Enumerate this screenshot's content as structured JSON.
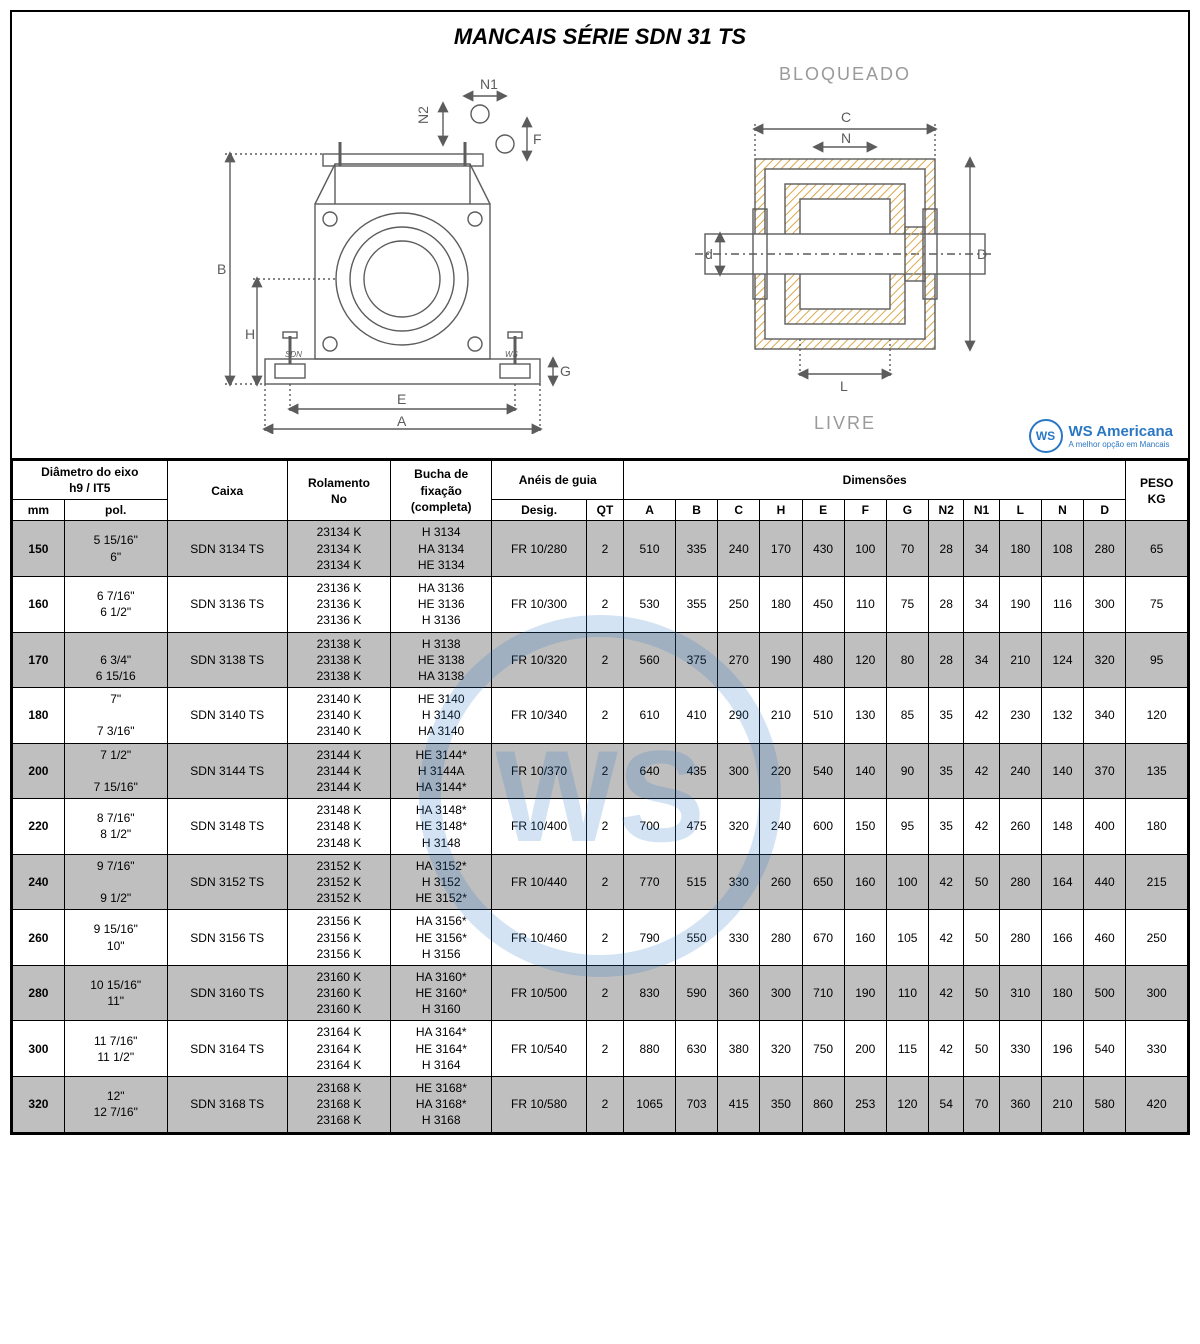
{
  "title": "MANCAIS SÉRIE  SDN 31 TS",
  "diagram_labels": {
    "top": "BLOQUEADO",
    "bottom": "LIVRE"
  },
  "dim_letters": {
    "A": "A",
    "B": "B",
    "C": "C",
    "D": "D",
    "E": "E",
    "F": "F",
    "G": "G",
    "H": "H",
    "L": "L",
    "N": "N",
    "N1": "N1",
    "N2": "N2",
    "d": "d"
  },
  "drawing_marks": {
    "sdn": "SDN",
    "ws": "WS"
  },
  "logo": {
    "icon": "WS",
    "line1": "WS Americana",
    "line2": "A melhor opção em Mancais"
  },
  "headers": {
    "diam": "Diâmetro do eixo\nh9 / IT5",
    "mm": "mm",
    "pol": "pol.",
    "caixa": "Caixa",
    "rolamento": "Rolamento\nNo",
    "bucha": "Bucha de\nfixação\n(completa)",
    "aneis": "Anéis de guia",
    "desig": "Desig.",
    "qt": "QT",
    "dim": "Dimensões",
    "A": "A",
    "B": "B",
    "C": "C",
    "H": "H",
    "E": "E",
    "F": "F",
    "G": "G",
    "N2": "N2",
    "N1": "N1",
    "L": "L",
    "N": "N",
    "D": "D",
    "peso": "PESO\nKG"
  },
  "rows": [
    {
      "shade": true,
      "mm": "150",
      "pol": "5 15/16\"\n6\"",
      "caixa": "SDN 3134 TS",
      "rol": "23134 K\n23134 K\n23134 K",
      "bucha": "H 3134\nHA 3134\nHE 3134",
      "desig": "FR 10/280",
      "qt": "2",
      "A": "510",
      "B": "335",
      "C": "240",
      "H": "170",
      "E": "430",
      "F": "100",
      "G": "70",
      "N2": "28",
      "N1": "34",
      "L": "180",
      "N": "108",
      "D": "280",
      "peso": "65"
    },
    {
      "shade": false,
      "mm": "160",
      "pol": "6 7/16\"\n6 1/2\"",
      "caixa": "SDN 3136 TS",
      "rol": "23136 K\n23136 K\n23136 K",
      "bucha": "HA 3136\nHE 3136\nH 3136",
      "desig": "FR 10/300",
      "qt": "2",
      "A": "530",
      "B": "355",
      "C": "250",
      "H": "180",
      "E": "450",
      "F": "110",
      "G": "75",
      "N2": "28",
      "N1": "34",
      "L": "190",
      "N": "116",
      "D": "300",
      "peso": "75"
    },
    {
      "shade": true,
      "mm": "170",
      "pol": "\n6 3/4\"\n6 15/16",
      "caixa": "SDN 3138 TS",
      "rol": "23138 K\n23138 K\n23138 K",
      "bucha": "H 3138\nHE 3138\nHA 3138",
      "desig": "FR 10/320",
      "qt": "2",
      "A": "560",
      "B": "375",
      "C": "270",
      "H": "190",
      "E": "480",
      "F": "120",
      "G": "80",
      "N2": "28",
      "N1": "34",
      "L": "210",
      "N": "124",
      "D": "320",
      "peso": "95"
    },
    {
      "shade": false,
      "mm": "180",
      "pol": "7\"\n\n7 3/16\"",
      "caixa": "SDN 3140 TS",
      "rol": "23140 K\n23140 K\n23140 K",
      "bucha": "HE 3140\nH 3140\nHA 3140",
      "desig": "FR 10/340",
      "qt": "2",
      "A": "610",
      "B": "410",
      "C": "290",
      "H": "210",
      "E": "510",
      "F": "130",
      "G": "85",
      "N2": "35",
      "N1": "42",
      "L": "230",
      "N": "132",
      "D": "340",
      "peso": "120"
    },
    {
      "shade": true,
      "mm": "200",
      "pol": "7 1/2\"\n\n7 15/16\"",
      "caixa": "SDN 3144 TS",
      "rol": "23144 K\n23144 K\n23144 K",
      "bucha": "HE 3144*\nH 3144A\nHA 3144*",
      "desig": "FR 10/370",
      "qt": "2",
      "A": "640",
      "B": "435",
      "C": "300",
      "H": "220",
      "E": "540",
      "F": "140",
      "G": "90",
      "N2": "35",
      "N1": "42",
      "L": "240",
      "N": "140",
      "D": "370",
      "peso": "135"
    },
    {
      "shade": false,
      "mm": "220",
      "pol": "8 7/16\"\n8 1/2\"",
      "caixa": "SDN 3148 TS",
      "rol": "23148 K\n23148 K\n23148 K",
      "bucha": "HA 3148*\nHE 3148*\nH 3148",
      "desig": "FR 10/400",
      "qt": "2",
      "A": "700",
      "B": "475",
      "C": "320",
      "H": "240",
      "E": "600",
      "F": "150",
      "G": "95",
      "N2": "35",
      "N1": "42",
      "L": "260",
      "N": "148",
      "D": "400",
      "peso": "180"
    },
    {
      "shade": true,
      "mm": "240",
      "pol": "9 7/16\"\n\n9 1/2\"",
      "caixa": "SDN 3152 TS",
      "rol": "23152 K\n23152 K\n23152 K",
      "bucha": "HA 3152*\nH 3152\nHE 3152*",
      "desig": "FR 10/440",
      "qt": "2",
      "A": "770",
      "B": "515",
      "C": "330",
      "H": "260",
      "E": "650",
      "F": "160",
      "G": "100",
      "N2": "42",
      "N1": "50",
      "L": "280",
      "N": "164",
      "D": "440",
      "peso": "215"
    },
    {
      "shade": false,
      "mm": "260",
      "pol": "9 15/16\"\n10\"",
      "caixa": "SDN 3156 TS",
      "rol": "23156 K\n23156 K\n23156 K",
      "bucha": "HA 3156*\nHE 3156*\nH 3156",
      "desig": "FR 10/460",
      "qt": "2",
      "A": "790",
      "B": "550",
      "C": "330",
      "H": "280",
      "E": "670",
      "F": "160",
      "G": "105",
      "N2": "42",
      "N1": "50",
      "L": "280",
      "N": "166",
      "D": "460",
      "peso": "250"
    },
    {
      "shade": true,
      "mm": "280",
      "pol": "10 15/16\"\n11\"",
      "caixa": "SDN 3160 TS",
      "rol": "23160 K\n23160 K\n23160 K",
      "bucha": "HA 3160*\nHE 3160*\nH 3160",
      "desig": "FR 10/500",
      "qt": "2",
      "A": "830",
      "B": "590",
      "C": "360",
      "H": "300",
      "E": "710",
      "F": "190",
      "G": "110",
      "N2": "42",
      "N1": "50",
      "L": "310",
      "N": "180",
      "D": "500",
      "peso": "300"
    },
    {
      "shade": false,
      "mm": "300",
      "pol": "11 7/16\"\n11 1/2\"",
      "caixa": "SDN 3164 TS",
      "rol": "23164 K\n23164 K\n23164 K",
      "bucha": "HA 3164*\nHE 3164*\nH 3164",
      "desig": "FR 10/540",
      "qt": "2",
      "A": "880",
      "B": "630",
      "C": "380",
      "H": "320",
      "E": "750",
      "F": "200",
      "G": "115",
      "N2": "42",
      "N1": "50",
      "L": "330",
      "N": "196",
      "D": "540",
      "peso": "330"
    },
    {
      "shade": true,
      "mm": "320",
      "pol": "12\"\n12 7/16\"",
      "caixa": "SDN 3168 TS",
      "rol": "23168 K\n23168 K\n23168 K",
      "bucha": "HE 3168*\nHA 3168*\nH 3168",
      "desig": "FR 10/580",
      "qt": "2",
      "A": "1065",
      "B": "703",
      "C": "415",
      "H": "350",
      "E": "860",
      "F": "253",
      "G": "120",
      "N2": "54",
      "N1": "70",
      "L": "360",
      "N": "210",
      "D": "580",
      "peso": "420"
    }
  ],
  "style": {
    "colors": {
      "border": "#000000",
      "shade": "#bfbfbf",
      "logo_blue": "#2a77c4",
      "label_grey": "#9a9a9a",
      "bg": "#ffffff",
      "hatch": "#ffcc66"
    },
    "table": {
      "font_size": 12,
      "header_font_weight": "bold"
    },
    "title_fontsize": 22,
    "diagram_stroke": "#5c5c5c",
    "diagram_stroke_w": 1.2
  }
}
